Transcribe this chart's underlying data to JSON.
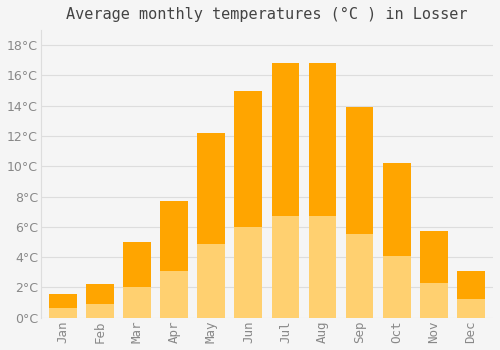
{
  "title": "Average monthly temperatures (°C ) in Losser",
  "months": [
    "Jan",
    "Feb",
    "Mar",
    "Apr",
    "May",
    "Jun",
    "Jul",
    "Aug",
    "Sep",
    "Oct",
    "Nov",
    "Dec"
  ],
  "values": [
    1.6,
    2.2,
    5.0,
    7.7,
    12.2,
    15.0,
    16.8,
    16.8,
    13.9,
    10.2,
    5.7,
    3.1
  ],
  "bar_color": "#FFA500",
  "bar_color_light": "#FFD070",
  "background_color": "#f5f5f5",
  "grid_color": "#dddddd",
  "tick_label_color": "#888888",
  "title_color": "#444444",
  "ylim": [
    0,
    19
  ],
  "yticks": [
    0,
    2,
    4,
    6,
    8,
    10,
    12,
    14,
    16,
    18
  ],
  "title_fontsize": 11,
  "tick_fontsize": 9,
  "bar_width": 0.75
}
